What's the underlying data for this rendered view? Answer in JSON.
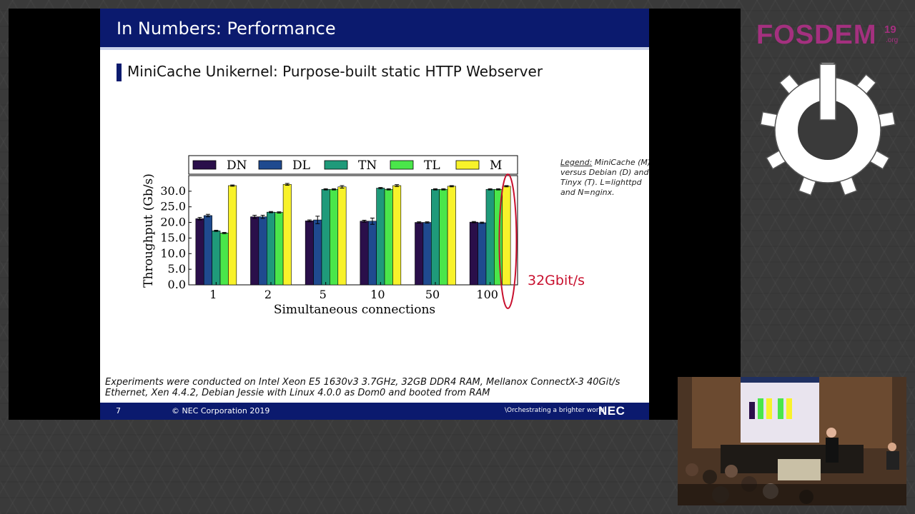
{
  "slide": {
    "title": "In Numbers: Performance",
    "subtitle": "MiniCache Unikernel: Purpose-built static HTTP Webserver",
    "legend_note": {
      "heading": "Legend:",
      "text": " MiniCache (M) versus Debian (D) and Tinyx (T). L=lighttpd and N=nginx."
    },
    "highlight_label": "32Gbit/s",
    "footnote_line1": "Experiments were conducted on Intel Xeon E5 1630v3 3.7GHz, 32GB DDR4 RAM, Mellanox ConnectX-3 40Git/s",
    "footnote_line2": "Ethernet, Xen 4.4.2, Debian Jessie with Linux 4.0.0 as Dom0 and booted from RAM",
    "footer": {
      "page_number": "7",
      "copyright": "© NEC Corporation 2019",
      "tagline": "\\Orchestrating a brighter world",
      "logo": "NEC"
    }
  },
  "branding": {
    "conference": "FOSDEM",
    "year": "19",
    "org": ".org"
  },
  "colors": {
    "slide_header": "#0b1a6e",
    "highlight": "#c8102e",
    "fosdem": "#a4307f"
  },
  "chart_data": {
    "type": "bar",
    "xlabel": "Simultaneous connections",
    "ylabel": "Throughput (Gb/s)",
    "ylim": [
      0,
      35
    ],
    "yticks": [
      "0.0",
      "5.0",
      "10.0",
      "15.0",
      "20.0",
      "25.0",
      "30.0"
    ],
    "categories": [
      "1",
      "2",
      "5",
      "10",
      "50",
      "100"
    ],
    "legend_position": "top",
    "series": [
      {
        "name": "DN",
        "color": "#2a0f4a",
        "values": [
          21.2,
          21.8,
          20.5,
          20.4,
          20.0,
          20.1
        ],
        "err": [
          0.4,
          0.5,
          0.3,
          0.3,
          0.2,
          0.2
        ]
      },
      {
        "name": "DL",
        "color": "#1f4a8f",
        "values": [
          22.2,
          21.8,
          20.8,
          20.4,
          20.0,
          19.9
        ],
        "err": [
          0.4,
          0.5,
          1.2,
          1.0,
          0.2,
          0.2
        ]
      },
      {
        "name": "TN",
        "color": "#1f9a7a",
        "values": [
          17.3,
          23.3,
          30.6,
          31.0,
          30.6,
          30.6
        ],
        "err": [
          0.2,
          0.2,
          0.2,
          0.2,
          0.2,
          0.2
        ]
      },
      {
        "name": "TL",
        "color": "#4ae64a",
        "values": [
          16.6,
          23.2,
          30.6,
          30.6,
          30.6,
          30.6
        ],
        "err": [
          0.2,
          0.2,
          0.2,
          0.2,
          0.2,
          0.2
        ]
      },
      {
        "name": "M",
        "color": "#f8f22a",
        "values": [
          31.8,
          32.2,
          31.4,
          31.8,
          31.6,
          31.6
        ],
        "err": [
          0.2,
          0.3,
          0.4,
          0.3,
          0.2,
          0.2
        ]
      }
    ]
  }
}
